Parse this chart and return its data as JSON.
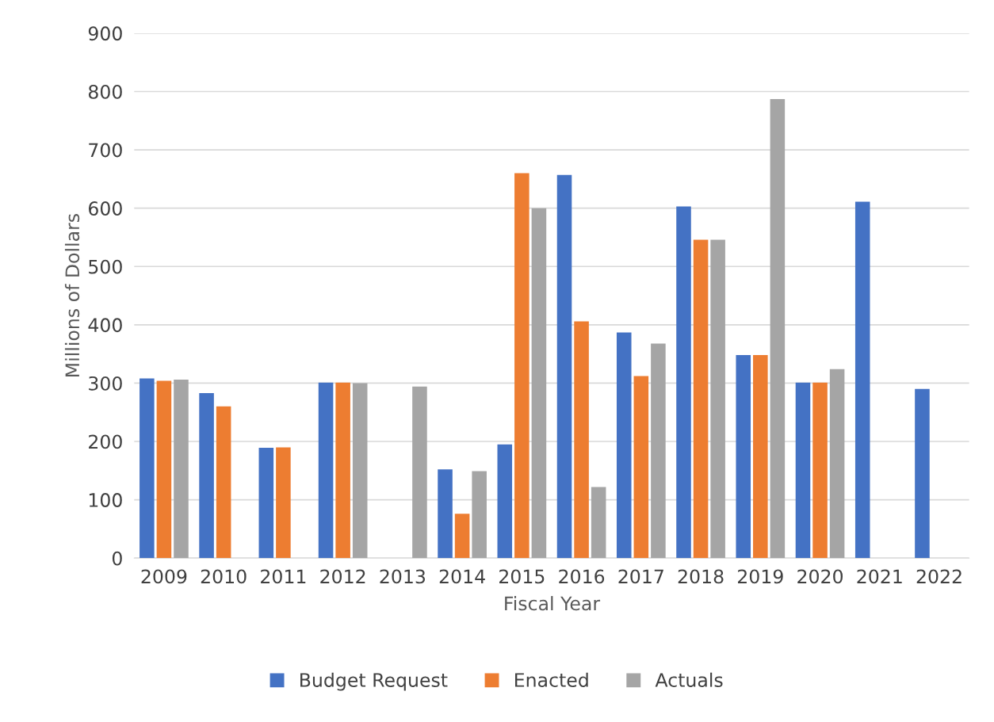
{
  "chart_data": {
    "type": "bar",
    "xlabel": "Fiscal Year",
    "ylabel": "Millions of Dollars",
    "categories": [
      "2009",
      "2010",
      "2011",
      "2012",
      "2013",
      "2014",
      "2015",
      "2016",
      "2017",
      "2018",
      "2019",
      "2020",
      "2021",
      "2022"
    ],
    "series": [
      {
        "name": "Budget Request",
        "color": "#4472c4",
        "values": [
          308,
          283,
          189,
          301,
          null,
          152,
          195,
          657,
          387,
          603,
          348,
          301,
          611,
          290
        ]
      },
      {
        "name": "Enacted",
        "color": "#ed7d31",
        "values": [
          304,
          260,
          190,
          301,
          null,
          76,
          660,
          406,
          312,
          546,
          348,
          301,
          null,
          null
        ]
      },
      {
        "name": "Actuals",
        "color": "#a5a5a5",
        "values": [
          306,
          null,
          null,
          300,
          294,
          149,
          600,
          122,
          368,
          546,
          787,
          324,
          null,
          null
        ]
      }
    ],
    "ylim": [
      0,
      900
    ],
    "yticks": [
      0,
      100,
      200,
      300,
      400,
      500,
      600,
      700,
      800,
      900
    ],
    "grid": "y",
    "legend": "bottom"
  }
}
